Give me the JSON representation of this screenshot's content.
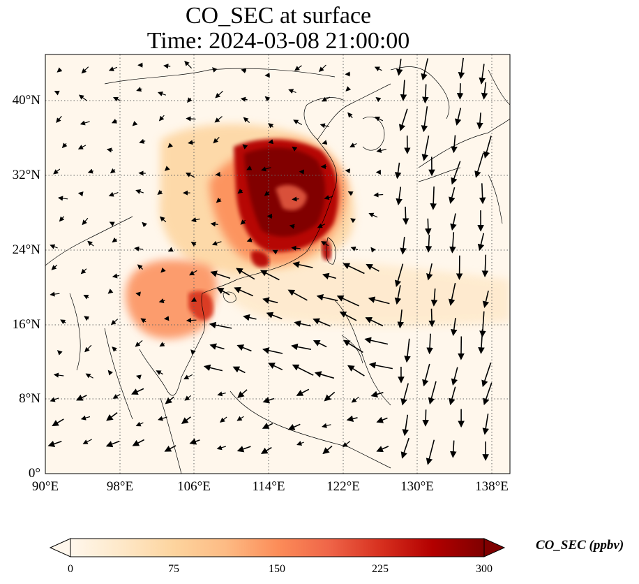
{
  "title": {
    "line1": "CO_SEC at surface",
    "line2": "Time: 2024-03-08 21:00:00"
  },
  "map": {
    "projection": "PlateCarree",
    "lon_range": [
      90,
      140
    ],
    "lat_range": [
      0,
      45
    ],
    "x_ticks": [
      "90°E",
      "98°E",
      "106°E",
      "114°E",
      "122°E",
      "130°E",
      "138°E"
    ],
    "y_ticks": [
      "0°",
      "8°N",
      "16°N",
      "24°N",
      "32°N",
      "40°N"
    ],
    "gridlines": "dotted",
    "field": "CO_SEC",
    "field_description_note": null,
    "vectors": "wind arrows (black)"
  },
  "colorbar": {
    "label": "CO_SEC (ppbv)",
    "colormap": "OrRd",
    "min": 0,
    "max": 300,
    "ticks": [
      "0",
      "75",
      "150",
      "225",
      "300"
    ],
    "extend": "both",
    "colors": [
      "#fff7ec",
      "#fee8c8",
      "#fdd49e",
      "#fdbb84",
      "#fc8d59",
      "#ef6548",
      "#d7301f",
      "#b30000",
      "#7f0000"
    ]
  }
}
